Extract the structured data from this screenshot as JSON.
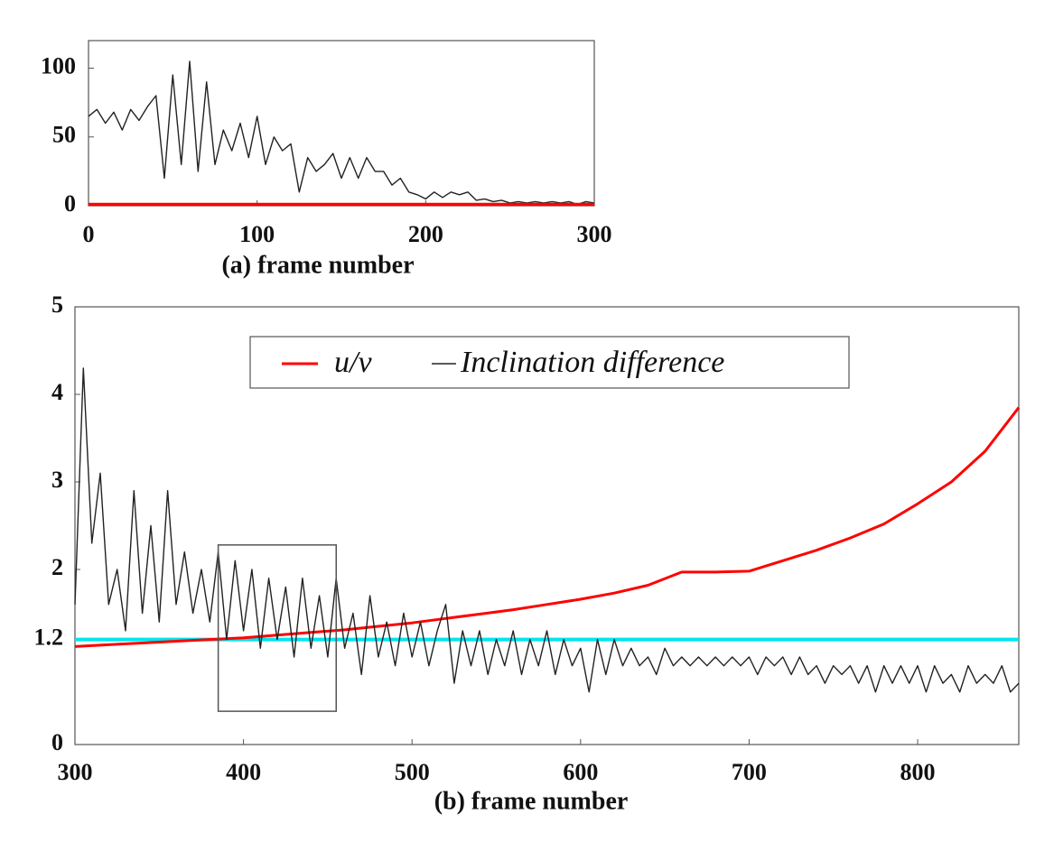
{
  "chart_data": [
    {
      "type": "line",
      "x_label": "(a) frame number",
      "xlim": [
        0,
        300
      ],
      "xticks": [
        0,
        100,
        200,
        300
      ],
      "ylim": [
        0,
        120
      ],
      "yticks": [
        0,
        50,
        100
      ],
      "series": [
        {
          "name": "Inclination difference",
          "color": "#222222",
          "x": [
            0,
            5,
            10,
            15,
            20,
            25,
            30,
            35,
            40,
            45,
            50,
            55,
            60,
            65,
            70,
            75,
            80,
            85,
            90,
            95,
            100,
            105,
            110,
            115,
            120,
            125,
            130,
            135,
            140,
            145,
            150,
            155,
            160,
            165,
            170,
            175,
            180,
            185,
            190,
            195,
            200,
            205,
            210,
            215,
            220,
            225,
            230,
            235,
            240,
            245,
            250,
            255,
            260,
            265,
            270,
            275,
            280,
            285,
            290,
            295,
            300
          ],
          "values": [
            65,
            70,
            60,
            68,
            55,
            70,
            62,
            72,
            80,
            20,
            95,
            30,
            105,
            25,
            90,
            30,
            55,
            40,
            60,
            35,
            65,
            30,
            50,
            40,
            45,
            10,
            35,
            25,
            30,
            38,
            20,
            35,
            20,
            35,
            25,
            25,
            15,
            20,
            10,
            8,
            5,
            10,
            6,
            10,
            8,
            10,
            4,
            5,
            3,
            4,
            2,
            3,
            2,
            3,
            2,
            3,
            2,
            3,
            1,
            3,
            2
          ]
        },
        {
          "name": "u/v",
          "color": "#ff0000",
          "x": [
            0,
            300
          ],
          "values": [
            1,
            1
          ]
        }
      ]
    },
    {
      "type": "line",
      "x_label": "(b) frame number",
      "xlim": [
        300,
        860
      ],
      "xticks": [
        300,
        400,
        500,
        600,
        700,
        800
      ],
      "ylim": [
        0,
        5
      ],
      "yticks": [
        0,
        1.2,
        2,
        3,
        4,
        5
      ],
      "legend": true,
      "hlines": [
        {
          "value": 1.2,
          "color": "#00e5ee"
        }
      ],
      "highlight_box": {
        "x": [
          385,
          455
        ],
        "y": [
          0.38,
          2.28
        ]
      },
      "series": [
        {
          "name": "u/v",
          "color": "#ff0000",
          "x": [
            300,
            320,
            340,
            360,
            380,
            400,
            420,
            440,
            460,
            480,
            500,
            520,
            540,
            560,
            580,
            600,
            620,
            640,
            660,
            680,
            700,
            720,
            740,
            760,
            780,
            800,
            820,
            840,
            860
          ],
          "values": [
            1.12,
            1.14,
            1.16,
            1.18,
            1.2,
            1.22,
            1.25,
            1.28,
            1.31,
            1.35,
            1.39,
            1.44,
            1.49,
            1.54,
            1.6,
            1.66,
            1.73,
            1.82,
            1.97,
            1.97,
            1.98,
            2.1,
            2.22,
            2.36,
            2.52,
            2.75,
            3.0,
            3.35,
            3.85
          ]
        },
        {
          "name": "Inclination difference",
          "color": "#222222",
          "x": [
            300,
            305,
            310,
            315,
            320,
            325,
            330,
            335,
            340,
            345,
            350,
            355,
            360,
            365,
            370,
            375,
            380,
            385,
            390,
            395,
            400,
            405,
            410,
            415,
            420,
            425,
            430,
            435,
            440,
            445,
            450,
            455,
            460,
            465,
            470,
            475,
            480,
            485,
            490,
            495,
            500,
            505,
            510,
            515,
            520,
            525,
            530,
            535,
            540,
            545,
            550,
            555,
            560,
            565,
            570,
            575,
            580,
            585,
            590,
            595,
            600,
            605,
            610,
            615,
            620,
            625,
            630,
            635,
            640,
            645,
            650,
            655,
            660,
            665,
            670,
            675,
            680,
            685,
            690,
            695,
            700,
            705,
            710,
            715,
            720,
            725,
            730,
            735,
            740,
            745,
            750,
            755,
            760,
            765,
            770,
            775,
            780,
            785,
            790,
            795,
            800,
            805,
            810,
            815,
            820,
            825,
            830,
            835,
            840,
            845,
            850,
            855,
            860
          ],
          "values": [
            1.6,
            4.3,
            2.3,
            3.1,
            1.6,
            2.0,
            1.3,
            2.9,
            1.5,
            2.5,
            1.4,
            2.9,
            1.6,
            2.2,
            1.5,
            2.0,
            1.4,
            2.2,
            1.2,
            2.1,
            1.3,
            2.0,
            1.1,
            1.9,
            1.2,
            1.8,
            1.0,
            1.9,
            1.1,
            1.7,
            1.0,
            1.9,
            1.1,
            1.5,
            0.8,
            1.7,
            1.0,
            1.4,
            0.9,
            1.5,
            1.0,
            1.4,
            0.9,
            1.3,
            1.6,
            0.7,
            1.3,
            0.9,
            1.3,
            0.8,
            1.2,
            0.9,
            1.3,
            0.8,
            1.2,
            0.9,
            1.3,
            0.8,
            1.2,
            0.9,
            1.1,
            0.6,
            1.2,
            0.8,
            1.2,
            0.9,
            1.1,
            0.9,
            1.0,
            0.8,
            1.1,
            0.9,
            1.0,
            0.9,
            1.0,
            0.9,
            1.0,
            0.9,
            1.0,
            0.9,
            1.0,
            0.8,
            1.0,
            0.9,
            1.0,
            0.8,
            1.0,
            0.8,
            0.9,
            0.7,
            0.9,
            0.8,
            0.9,
            0.7,
            0.9,
            0.6,
            0.9,
            0.7,
            0.9,
            0.7,
            0.9,
            0.6,
            0.9,
            0.7,
            0.8,
            0.6,
            0.9,
            0.7,
            0.8,
            0.7,
            0.9,
            0.6,
            0.7
          ]
        }
      ]
    }
  ]
}
